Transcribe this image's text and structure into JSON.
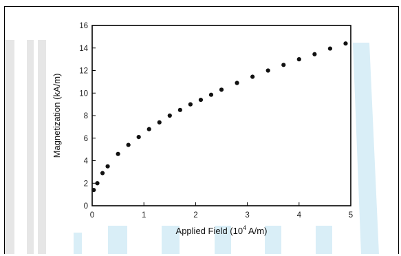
{
  "chart_data": {
    "type": "scatter",
    "xlabel_prefix": "Applied Field (10",
    "xlabel_exponent": "4",
    "xlabel_suffix": " A/m)",
    "ylabel": "Magnetization (kA/m)",
    "xlim": [
      0,
      5
    ],
    "ylim": [
      0,
      16
    ],
    "x_ticks": [
      0,
      1,
      2,
      3,
      4,
      5
    ],
    "y_ticks": [
      0,
      2,
      4,
      6,
      8,
      10,
      12,
      14,
      16
    ],
    "grid": false,
    "legend": "none",
    "marker_color": "#111111",
    "x": [
      0.03,
      0.1,
      0.2,
      0.3,
      0.5,
      0.7,
      0.9,
      1.1,
      1.3,
      1.5,
      1.7,
      1.9,
      2.1,
      2.3,
      2.5,
      2.8,
      3.1,
      3.4,
      3.7,
      4.0,
      4.3,
      4.6,
      4.9
    ],
    "y": [
      1.4,
      2.0,
      2.9,
      3.5,
      4.6,
      5.4,
      6.1,
      6.8,
      7.4,
      8.0,
      8.5,
      9.0,
      9.4,
      9.85,
      10.3,
      10.9,
      11.45,
      12.0,
      12.5,
      13.0,
      13.45,
      13.95,
      14.4
    ]
  }
}
